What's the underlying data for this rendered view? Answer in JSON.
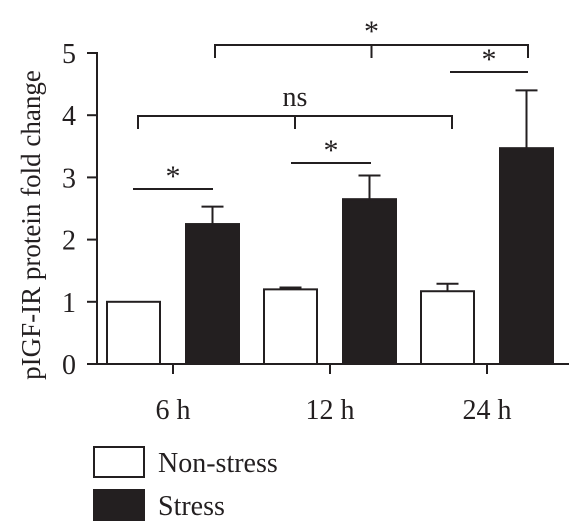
{
  "chart_data": {
    "type": "bar",
    "ylabel": "pIGF-IR protein fold change",
    "xlabel": "",
    "ylim": [
      0,
      5
    ],
    "yticks": [
      "0",
      "1",
      "2",
      "3",
      "4",
      "5"
    ],
    "categories": [
      "6 h",
      "12 h",
      "24 h"
    ],
    "series": [
      {
        "name": "Non-stress",
        "values": [
          1.0,
          1.2,
          1.17
        ],
        "errors": [
          0.0,
          0.03,
          0.12
        ],
        "fill": "#ffffff"
      },
      {
        "name": "Stress",
        "values": [
          2.25,
          2.65,
          3.47
        ],
        "errors": [
          0.28,
          0.38,
          0.93
        ],
        "fill": "#231f20"
      }
    ],
    "annotations": [
      {
        "label": "*",
        "between": "6 h Non-stress vs 6 h Stress"
      },
      {
        "label": "*",
        "between": "12 h Non-stress vs 12 h Stress"
      },
      {
        "label": "*",
        "between": "24 h Non-stress vs 24 h Stress"
      },
      {
        "label": "ns",
        "between": "6 h Non-stress vs 24 h Non-stress"
      },
      {
        "label": "*",
        "between": "6 h Stress vs 24 h Stress"
      }
    ],
    "grid": false,
    "legend_position": "bottom-left"
  }
}
